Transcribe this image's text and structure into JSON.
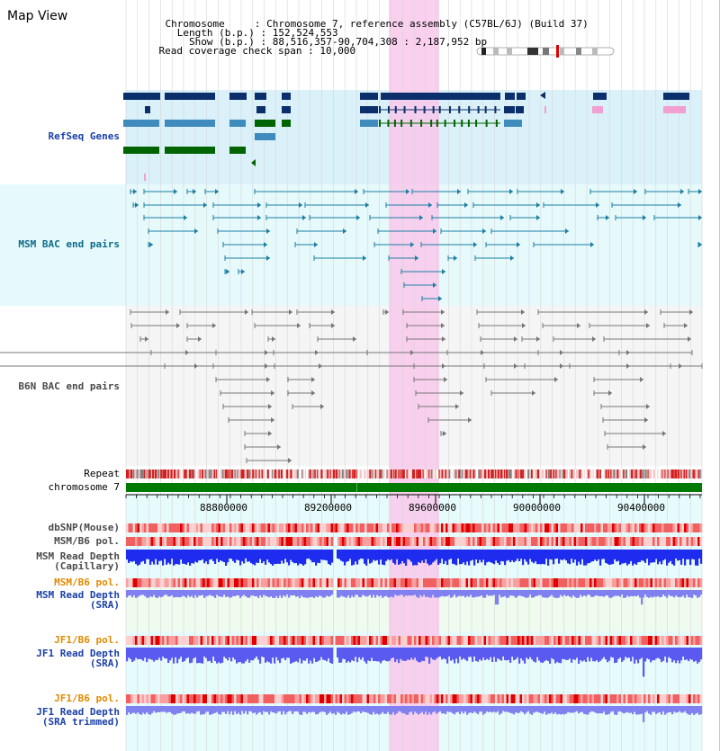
{
  "page": {
    "title": "Map View"
  },
  "info": {
    "chromosome_label": "Chromosome",
    "chromosome_value": "Chromosome 7, reference assembly (C57BL/6J) (Build 37)",
    "length_label": "Length (b.p.)",
    "length_value": "152,524,553",
    "show_label": "Show (b.p.)",
    "show_value": "88,516,357-90,704,308 : 2,187,952 bp",
    "coverage_label": "Read coverage check span",
    "coverage_value": "10,000"
  },
  "tracks": {
    "refseq": "RefSeq Genes",
    "msm_bac": "MSM BAC end pairs",
    "b6n_bac": "B6N BAC end pairs",
    "repeat": "Repeat",
    "chromosome": "chromosome 7",
    "dbsnp": "dbSNP(Mouse)",
    "msm_b6_pol_1": "MSM/B6 pol.",
    "msm_depth_cap_1": "MSM Read Depth",
    "msm_depth_cap_2": "(Capillary)",
    "msm_b6_pol_2": "MSM/B6 pol.",
    "msm_depth_sra_1": "MSM Read Depth",
    "msm_depth_sra_2": "(SRA)",
    "jf1_b6_pol_1": "JF1/B6 pol.",
    "jf1_depth_sra_1": "JF1 Read Depth",
    "jf1_depth_sra_2": "(SRA)",
    "jf1_b6_pol_2": "JF1/B6 pol.",
    "jf1_depth_trim_1": "JF1 Read Depth",
    "jf1_depth_trim_2": "(SRA trimmed)"
  },
  "axis": {
    "start_bp": 88516357,
    "end_bp": 90704308,
    "ticks": [
      "88800000",
      "89200000",
      "89600000",
      "90000000",
      "90400000"
    ]
  },
  "highlight": {
    "start_bp": 89550000,
    "end_bp": 89740000,
    "color": "#f9c8ec"
  },
  "colors": {
    "refseq_bg": "#dbf1fa",
    "msm_bg": "#e6f9fb",
    "b6n_bg": "#f5f5f5",
    "depth_bg": "#e6fbfb",
    "gene_dark": "#0a2f6b",
    "gene_mid": "#3f8bbd",
    "gene_green": "#006400",
    "bac_teal": "#1b7fa3",
    "bac_gray": "#777777",
    "depth_blue": "#1e2cf0",
    "depth_light": "#8080f0",
    "pol_red": "#e8302a",
    "chrom_green": "#007a00"
  }
}
